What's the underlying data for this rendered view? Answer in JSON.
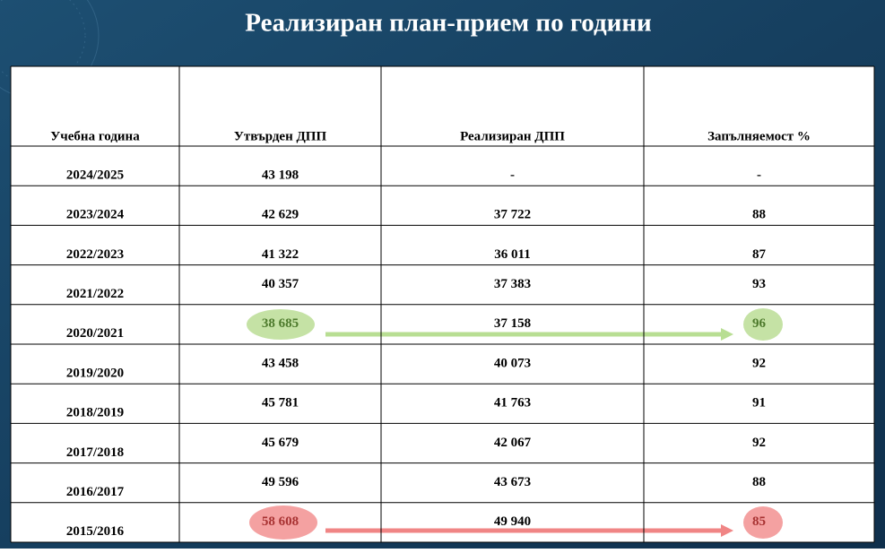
{
  "title": "Реализиран план-прием по години",
  "table": {
    "headers": [
      "Учебна година",
      "Утвърден ДПП",
      "Реализиран ДПП",
      "Запълняемост %"
    ],
    "rows": [
      [
        "2024/2025",
        "43 198",
        "-",
        "-"
      ],
      [
        "2023/2024",
        "42 629",
        "37 722",
        "88"
      ],
      [
        "2022/2023",
        "41 322",
        "36 011",
        "87"
      ],
      [
        "2021/2022",
        "40 357",
        "37 383",
        "93"
      ],
      [
        "2020/2021",
        "38 685",
        "37 158",
        "96"
      ],
      [
        "2019/2020",
        "43 458",
        "40 073",
        "92"
      ],
      [
        "2018/2019",
        "45 781",
        "41 763",
        "91"
      ],
      [
        "2017/2018",
        "45 679",
        "42 067",
        "92"
      ],
      [
        "2016/2017",
        "49 596",
        "43 673",
        "88"
      ],
      [
        "2015/2016",
        "58 608",
        "49 940",
        "85"
      ]
    ]
  }
}
